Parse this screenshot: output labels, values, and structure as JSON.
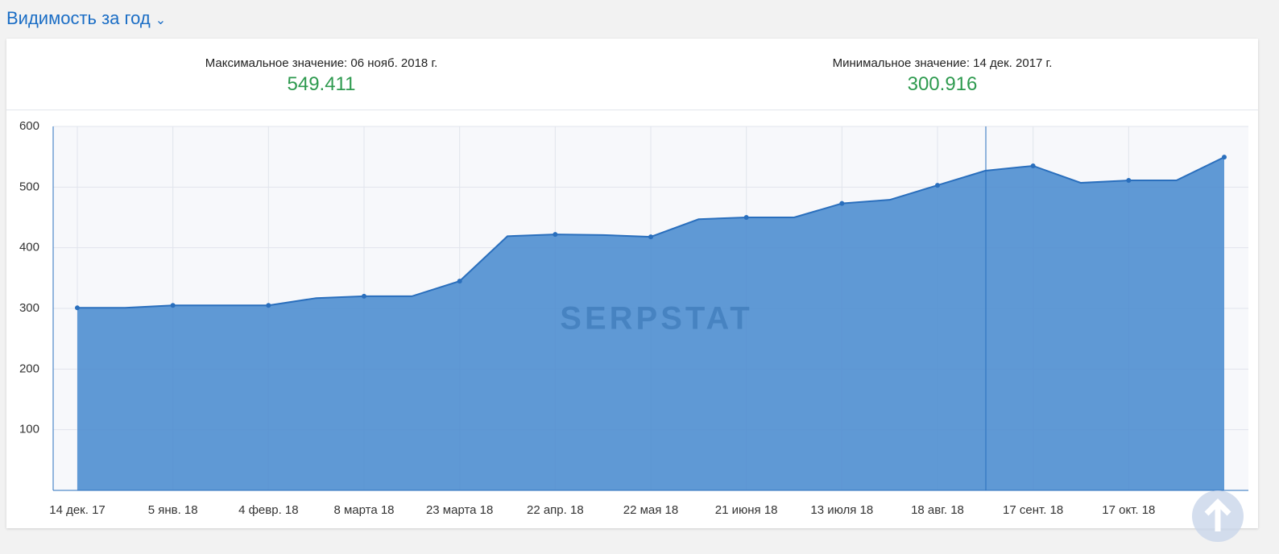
{
  "title": "Видимость за год",
  "stats": [
    {
      "label": "Максимальное значение: 06 нояб. 2018 г.",
      "value": "549.411"
    },
    {
      "label": "Минимальное значение: 14 дек. 2017 г.",
      "value": "300.916"
    }
  ],
  "chart_data": {
    "type": "area",
    "watermark": "SERPSTAT",
    "categories": [
      "14 дек. 17",
      null,
      "5 янв. 18",
      null,
      "4 февр. 18",
      null,
      "8 марта 18",
      null,
      "23 марта 18",
      null,
      "22 апр. 18",
      null,
      "22 мая 18",
      null,
      "21 июня 18",
      null,
      "13 июля 18",
      null,
      "18 авг. 18",
      null,
      "17 сент. 18",
      null,
      "17 окт. 18",
      null,
      null
    ],
    "series": [
      {
        "name": "Видимость",
        "color": "#2a6fbd",
        "values": [
          300.916,
          301,
          305,
          305,
          305,
          317,
          320,
          320,
          345,
          419,
          422,
          421,
          418,
          447,
          450,
          450,
          473,
          479,
          503,
          527,
          535,
          507,
          511,
          511,
          549.411
        ]
      }
    ],
    "ylim": [
      0,
      600
    ],
    "yticks": [
      100,
      200,
      300,
      400,
      500,
      600
    ],
    "grid": true
  }
}
